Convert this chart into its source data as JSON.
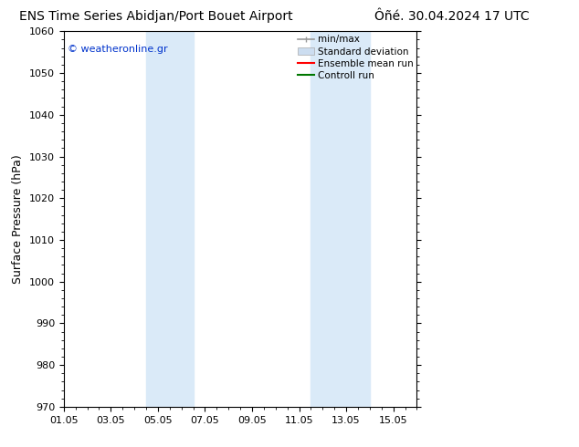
{
  "title_left": "ENS Time Series Abidjan/Port Bouet Airport",
  "title_right": "Ôñé. 30.04.2024 17 UTC",
  "ylabel": "Surface Pressure (hPa)",
  "ylim": [
    970,
    1060
  ],
  "yticks": [
    970,
    980,
    990,
    1000,
    1010,
    1020,
    1030,
    1040,
    1050,
    1060
  ],
  "xtick_labels": [
    "01.05",
    "03.05",
    "05.05",
    "07.05",
    "09.05",
    "11.05",
    "13.05",
    "15.05"
  ],
  "xtick_positions": [
    0,
    2,
    4,
    6,
    8,
    10,
    12,
    14
  ],
  "xlim": [
    0,
    15
  ],
  "shaded_bands": [
    {
      "x_start": 3.5,
      "x_end": 5.5
    },
    {
      "x_start": 10.5,
      "x_end": 13.0
    }
  ],
  "shade_color": "#daeaf8",
  "background_color": "#ffffff",
  "plot_bg_color": "#ffffff",
  "watermark_text": "© weatheronline.gr",
  "watermark_color": "#0033cc",
  "legend_items": [
    {
      "label": "min/max",
      "color": "#aaaaaa",
      "style": "line_with_tick"
    },
    {
      "label": "Standard deviation",
      "color": "#ccddf0",
      "style": "filled_box"
    },
    {
      "label": "Ensemble mean run",
      "color": "#ff0000",
      "style": "line"
    },
    {
      "label": "Controll run",
      "color": "#007700",
      "style": "line"
    }
  ],
  "border_color": "#000000",
  "title_fontsize": 10,
  "label_fontsize": 9,
  "tick_fontsize": 8,
  "legend_fontsize": 7.5
}
